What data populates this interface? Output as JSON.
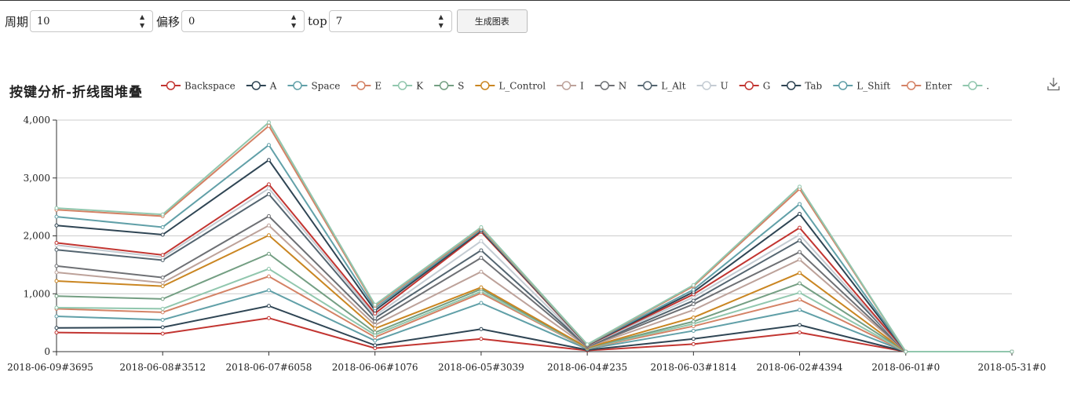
{
  "controls": {
    "period_label": "周期",
    "period_value": "10",
    "offset_label": "偏移",
    "offset_value": "0",
    "top_label": "top",
    "top_value": "7",
    "generate_label": "生成图表"
  },
  "icons": {
    "download": "download-icon",
    "spin_up": "chevron-up-icon",
    "spin_down": "chevron-down-icon"
  },
  "chart_data": {
    "type": "line",
    "stacked": true,
    "title": "按键分析-折线图堆叠",
    "legend_position": "top",
    "grid": true,
    "ylim": [
      0,
      4000
    ],
    "yticks": [
      "0",
      "1,000",
      "2,000",
      "3,000",
      "4,000"
    ],
    "categories": [
      "2018-06-09#3695",
      "2018-06-08#3512",
      "2018-06-07#6058",
      "2018-06-06#1076",
      "2018-06-05#3039",
      "2018-06-04#235",
      "2018-06-03#1814",
      "2018-06-02#4394",
      "2018-06-01#0",
      "2018-05-31#0"
    ],
    "series": [
      {
        "name": "Backspace",
        "color": "#c23531",
        "values": [
          330,
          310,
          580,
          60,
          220,
          20,
          130,
          330,
          0,
          0
        ]
      },
      {
        "name": "A",
        "color": "#2f4554",
        "values": [
          80,
          110,
          210,
          50,
          170,
          10,
          90,
          130,
          0,
          0
        ]
      },
      {
        "name": "Space",
        "color": "#61a0a8",
        "values": [
          200,
          130,
          270,
          80,
          450,
          15,
          140,
          260,
          0,
          0
        ]
      },
      {
        "name": "E",
        "color": "#d48265",
        "values": [
          130,
          130,
          240,
          60,
          170,
          10,
          80,
          180,
          0,
          0
        ]
      },
      {
        "name": "K",
        "color": "#91c7ae",
        "values": [
          20,
          60,
          130,
          40,
          30,
          5,
          40,
          120,
          0,
          0
        ]
      },
      {
        "name": "S",
        "color": "#749f83",
        "values": [
          200,
          170,
          260,
          40,
          40,
          5,
          40,
          160,
          0,
          0
        ]
      },
      {
        "name": "L_Control",
        "color": "#ca8622",
        "values": [
          260,
          220,
          320,
          70,
          30,
          5,
          70,
          180,
          0,
          0
        ]
      },
      {
        "name": "I",
        "color": "#bda29a",
        "values": [
          150,
          60,
          170,
          60,
          270,
          10,
          130,
          230,
          0,
          0
        ]
      },
      {
        "name": "N",
        "color": "#6e7074",
        "values": [
          110,
          90,
          160,
          60,
          240,
          5,
          100,
          130,
          0,
          0
        ]
      },
      {
        "name": "L_Alt",
        "color": "#546570",
        "values": [
          280,
          300,
          380,
          60,
          130,
          10,
          60,
          200,
          0,
          0
        ]
      },
      {
        "name": "U",
        "color": "#c4ccd3",
        "values": [
          80,
          50,
          100,
          40,
          160,
          5,
          60,
          100,
          0,
          0
        ]
      },
      {
        "name": "G",
        "color": "#c23531",
        "values": [
          40,
          40,
          70,
          40,
          160,
          5,
          50,
          120,
          0,
          0
        ]
      },
      {
        "name": "Tab",
        "color": "#2f4554",
        "values": [
          300,
          350,
          420,
          50,
          20,
          5,
          40,
          240,
          0,
          0
        ]
      },
      {
        "name": "L_Shift",
        "color": "#61a0a8",
        "values": [
          150,
          130,
          260,
          40,
          20,
          5,
          40,
          170,
          0,
          0
        ]
      },
      {
        "name": "Enter",
        "color": "#d48265",
        "values": [
          120,
          190,
          330,
          40,
          20,
          5,
          60,
          260,
          0,
          0
        ]
      },
      {
        "name": ".",
        "color": "#91c7ae",
        "values": [
          30,
          30,
          60,
          20,
          20,
          5,
          20,
          40,
          0,
          0
        ]
      }
    ]
  }
}
